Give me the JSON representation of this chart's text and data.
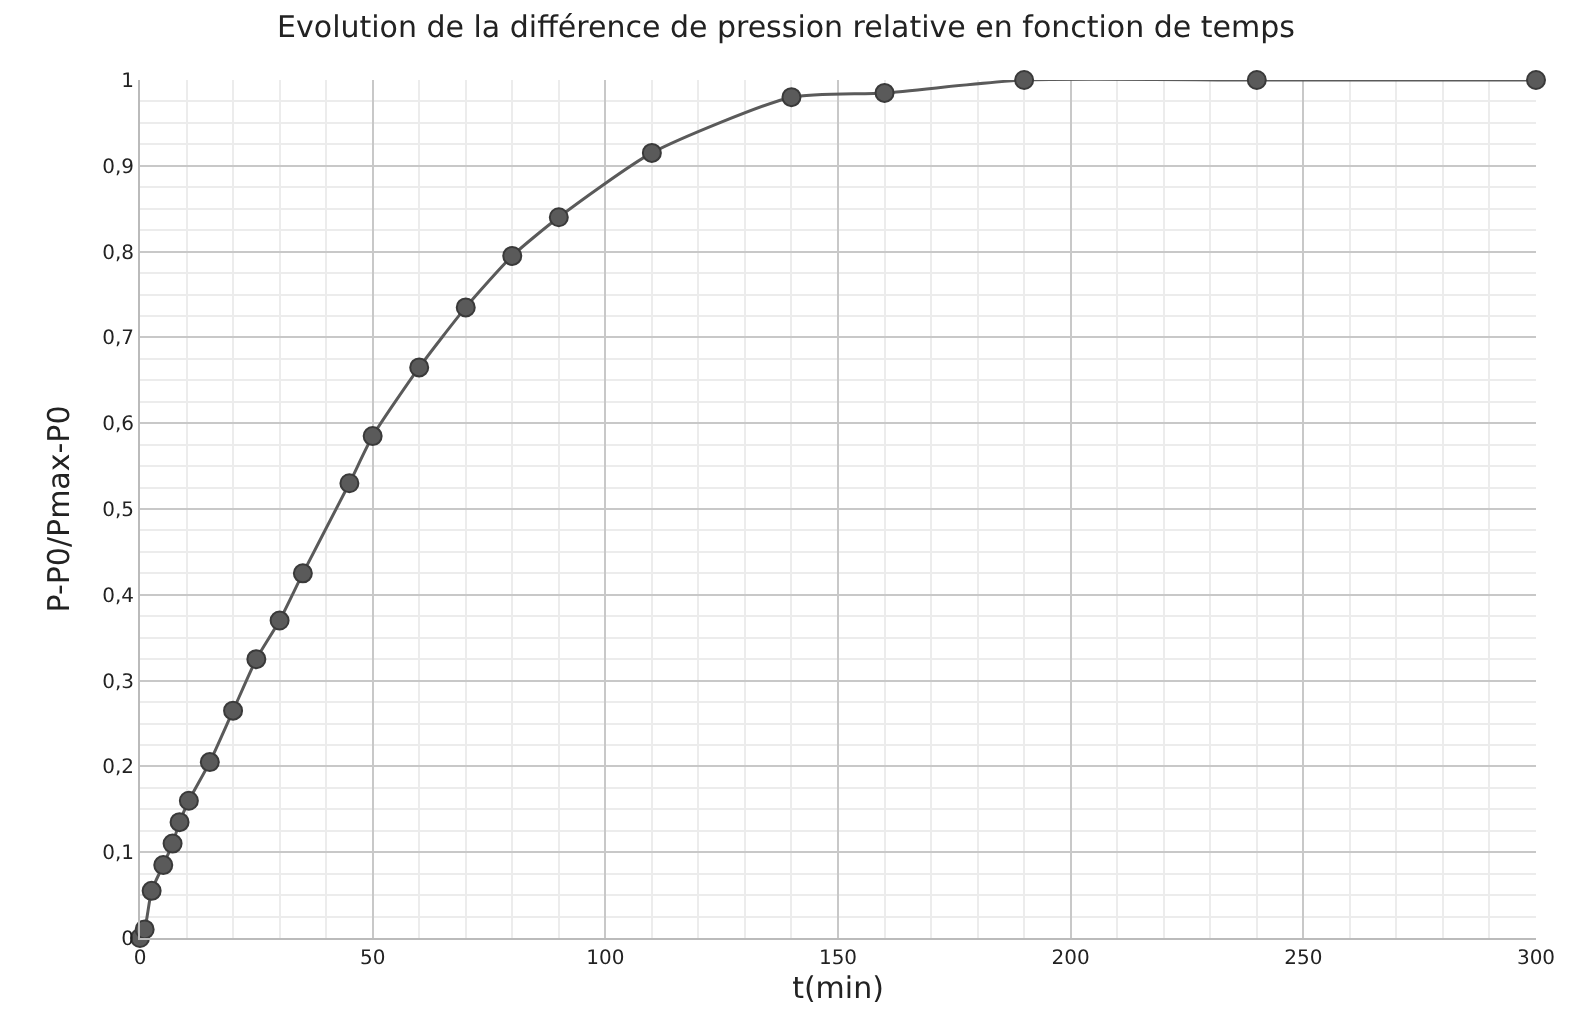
{
  "chart_data": {
    "type": "line",
    "title": "Evolution de la différence de pression relative en fonction de temps",
    "xlabel": "t(min)",
    "ylabel": "P-P0/Pmax-P0",
    "x": [
      0,
      1,
      2.5,
      5,
      7,
      8.5,
      10.5,
      15,
      20,
      25,
      30,
      35,
      45,
      50,
      60,
      70,
      80,
      90,
      110,
      140,
      160,
      190,
      240,
      300
    ],
    "series": [
      {
        "color": "#5a5a5a",
        "values": [
          0,
          0.01,
          0.055,
          0.085,
          0.11,
          0.135,
          0.16,
          0.205,
          0.265,
          0.325,
          0.37,
          0.425,
          0.53,
          0.585,
          0.665,
          0.735,
          0.795,
          0.84,
          0.915,
          0.98,
          0.985,
          1,
          1,
          1
        ]
      }
    ],
    "xlim": [
      0,
      300
    ],
    "xticks": [
      0,
      50,
      100,
      150,
      200,
      250,
      300
    ],
    "ylim": [
      0,
      1
    ],
    "yticks": [
      {
        "value": 0,
        "label": "0"
      },
      {
        "value": 0.1,
        "label": "0,1"
      },
      {
        "value": 0.2,
        "label": "0,2"
      },
      {
        "value": 0.3,
        "label": "0,3"
      },
      {
        "value": 0.4,
        "label": "0,4"
      },
      {
        "value": 0.5,
        "label": "0,5"
      },
      {
        "value": 0.6,
        "label": "0,6"
      },
      {
        "value": 0.7,
        "label": "0,7"
      },
      {
        "value": 0.8,
        "label": "0,8"
      },
      {
        "value": 0.9,
        "label": "0,9"
      },
      {
        "value": 1,
        "label": "1"
      }
    ],
    "grid": true,
    "marker": "circle",
    "line_style": "solid"
  }
}
